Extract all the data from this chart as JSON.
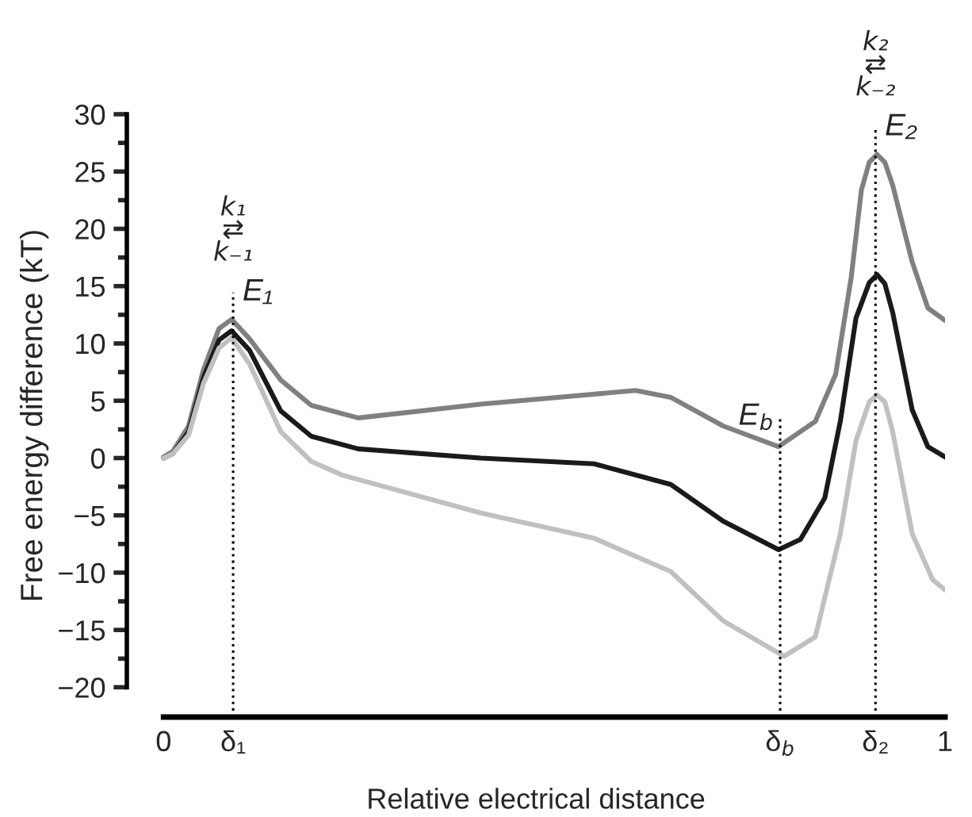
{
  "chart_data": {
    "type": "line",
    "xlabel": "Relative electrical distance",
    "ylabel": "Free energy difference (kT)",
    "xlim": [
      -0.047,
      1.0
    ],
    "xticks": [
      0,
      {
        "value": 0.089,
        "label": "δ₁"
      },
      {
        "value": 0.789,
        "label": "δ$_{b}$"
      },
      {
        "value": 0.911,
        "label": "δ₂"
      },
      1
    ],
    "ylim": [
      -22.6,
      30
    ],
    "yticks": [
      -20,
      -15,
      -10,
      -5,
      0,
      5,
      10,
      15,
      20,
      25,
      30
    ],
    "grid": false,
    "legend": false,
    "marker": "none",
    "line_style": "solid",
    "ref_lines": [
      {
        "axis": "x",
        "value": 0.089,
        "label": "E₁",
        "line_style": "dotted",
        "color": "#000000"
      },
      {
        "axis": "x",
        "value": 0.789,
        "label": "E$_{b}$",
        "line_style": "dotted",
        "color": "#000000"
      },
      {
        "axis": "x",
        "value": 0.911,
        "label": "E₂",
        "line_style": "dotted",
        "color": "#000000"
      }
    ],
    "annotations": [
      "k₁\n⇄\nk₋₁",
      "k₂\n⇄\nk₋₂"
    ],
    "series": [
      {
        "color": "#808080",
        "x": [
          0,
          0.012,
          0.032,
          0.051,
          0.071,
          0.087,
          0.11,
          0.15,
          0.189,
          0.249,
          0.406,
          0.604,
          0.649,
          0.716,
          0.787,
          0.834,
          0.86,
          0.88,
          0.893,
          0.903,
          0.913,
          0.923,
          0.933,
          0.958,
          0.978,
          1.0
        ],
        "values": [
          0.1,
          0.6,
          2.8,
          7.7,
          11.3,
          12.1,
          10.4,
          6.8,
          4.6,
          3.5,
          4.7,
          5.9,
          5.3,
          2.8,
          1.0,
          3.2,
          7.3,
          15.8,
          23.4,
          25.8,
          26.5,
          25.8,
          23.8,
          17.1,
          13.1,
          12.0
        ]
      },
      {
        "color": "#1a1a1a",
        "x": [
          0,
          0.012,
          0.032,
          0.051,
          0.071,
          0.087,
          0.11,
          0.15,
          0.189,
          0.249,
          0.406,
          0.551,
          0.649,
          0.716,
          0.787,
          0.815,
          0.846,
          0.866,
          0.886,
          0.903,
          0.913,
          0.923,
          0.933,
          0.958,
          0.978,
          1.0
        ],
        "values": [
          0.0,
          0.4,
          2.3,
          7.0,
          10.3,
          11.1,
          9.4,
          4.1,
          1.9,
          0.8,
          0.0,
          -0.5,
          -2.3,
          -5.5,
          -8.0,
          -7.1,
          -3.5,
          3.2,
          12.2,
          15.3,
          16.0,
          15.2,
          12.7,
          4.2,
          1.0,
          0.1
        ]
      },
      {
        "color": "#c0c0c0",
        "x": [
          0,
          0.012,
          0.032,
          0.051,
          0.071,
          0.087,
          0.11,
          0.15,
          0.189,
          0.229,
          0.406,
          0.551,
          0.649,
          0.716,
          0.794,
          0.834,
          0.866,
          0.886,
          0.903,
          0.913,
          0.923,
          0.933,
          0.958,
          0.984,
          1.0
        ],
        "values": [
          0.0,
          0.4,
          2.0,
          6.5,
          9.6,
          10.5,
          8.2,
          2.3,
          -0.3,
          -1.5,
          -4.8,
          -7.0,
          -9.9,
          -14.2,
          -17.3,
          -15.6,
          -6.6,
          1.5,
          4.9,
          5.5,
          4.9,
          2.3,
          -6.6,
          -10.6,
          -11.5
        ]
      }
    ]
  }
}
